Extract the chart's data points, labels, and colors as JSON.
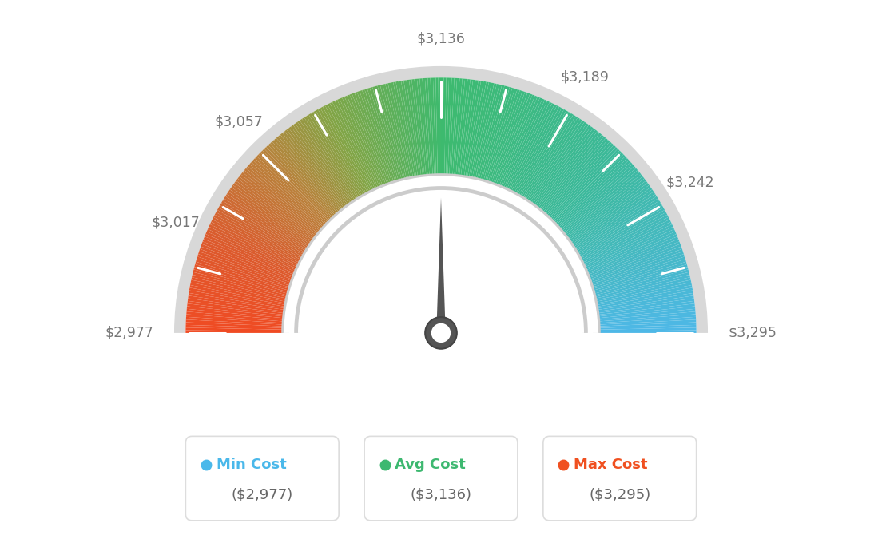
{
  "min_val": 2977,
  "max_val": 3295,
  "avg_val": 3136,
  "needle_value": 3136,
  "labels": [
    "$2,977",
    "$3,017",
    "$3,057",
    "$3,136",
    "$3,189",
    "$3,242",
    "$3,295"
  ],
  "label_values": [
    2977,
    3017,
    3057,
    3136,
    3189,
    3242,
    3295
  ],
  "legend": [
    {
      "label": "Min Cost",
      "value": "($2,977)",
      "color": "#4ab8ea"
    },
    {
      "label": "Avg Cost",
      "value": "($3,136)",
      "color": "#3db870"
    },
    {
      "label": "Max Cost",
      "value": "($3,295)",
      "color": "#f05020"
    }
  ],
  "bg_color": "#ffffff",
  "label_color": "#777777",
  "tick_color": "#ffffff",
  "n_ticks": 13,
  "colors_gradient": [
    [
      0.0,
      [
        78,
        184,
        232
      ]
    ],
    [
      0.25,
      [
        60,
        185,
        155
      ]
    ],
    [
      0.5,
      [
        61,
        186,
        110
      ]
    ],
    [
      0.65,
      [
        130,
        165,
        70
      ]
    ],
    [
      0.75,
      [
        185,
        130,
        60
      ]
    ],
    [
      0.88,
      [
        220,
        90,
        45
      ]
    ],
    [
      1.0,
      [
        240,
        75,
        35
      ]
    ]
  ]
}
